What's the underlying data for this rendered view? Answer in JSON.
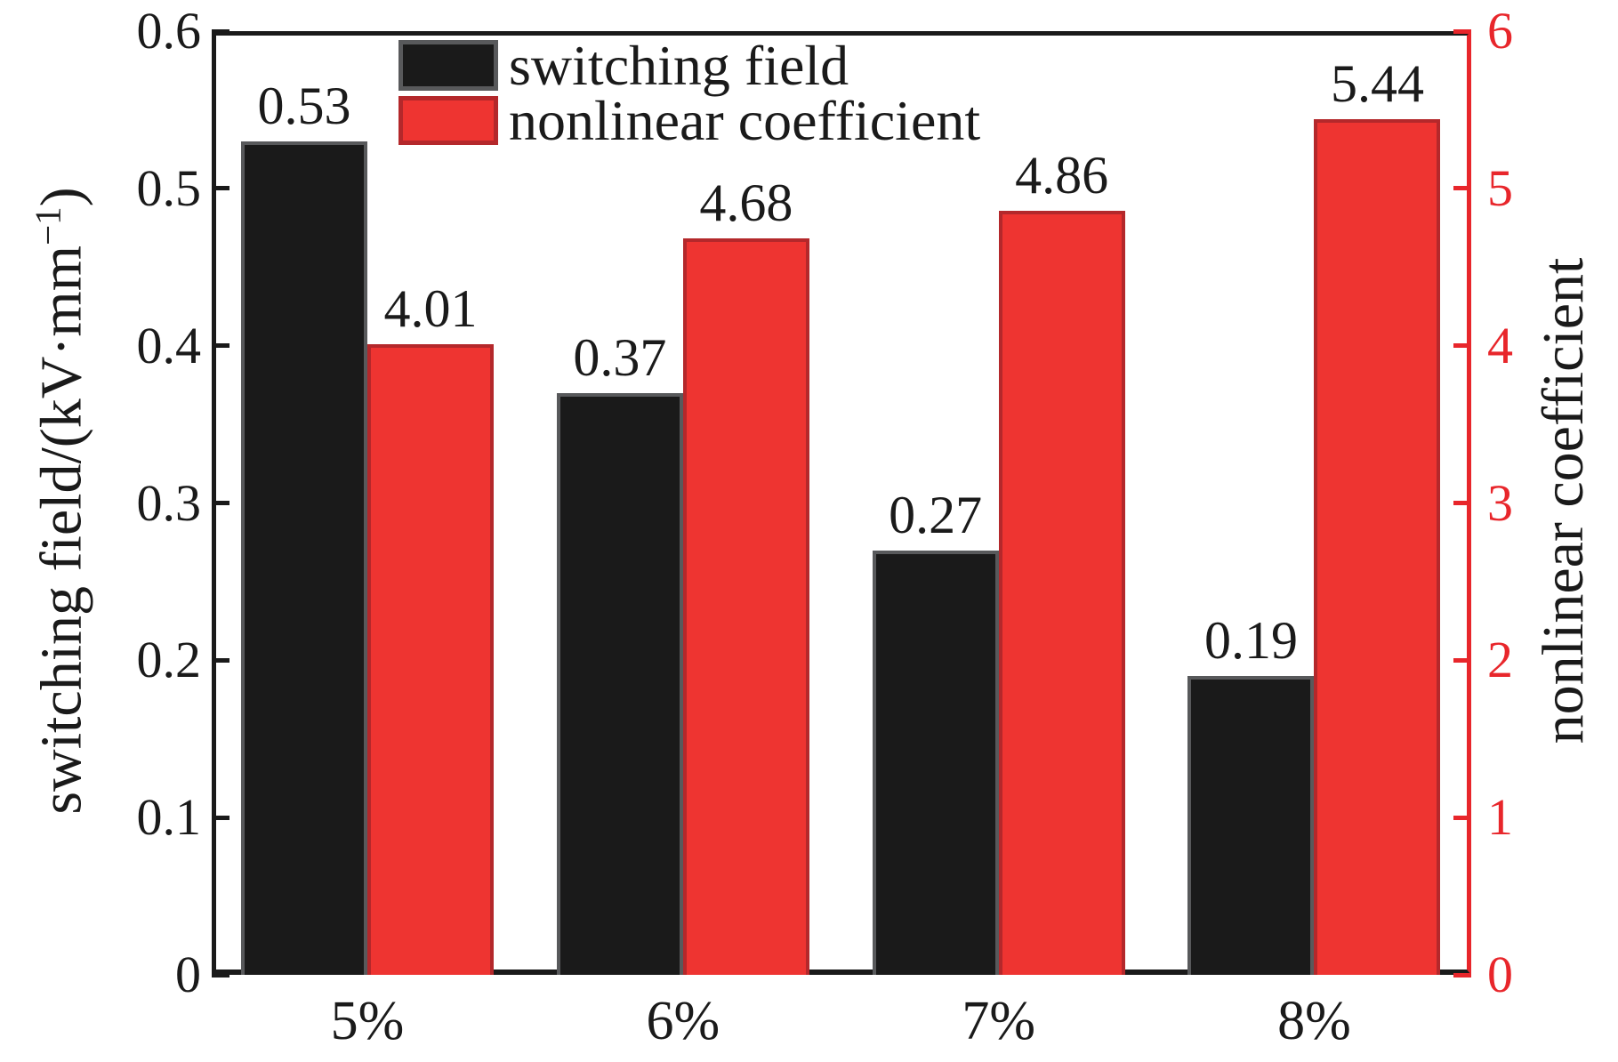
{
  "chart_data": {
    "type": "bar",
    "categories": [
      "5%",
      "6%",
      "7%",
      "8%"
    ],
    "series": [
      {
        "name": "switching field",
        "axis": "left",
        "values": [
          0.53,
          0.37,
          0.27,
          0.19
        ],
        "value_labels": [
          "0.53",
          "0.37",
          "0.27",
          "0.19"
        ],
        "fill": "#1a1a1a",
        "border": "#58595b"
      },
      {
        "name": "nonlinear coefficient",
        "axis": "right",
        "values": [
          4.01,
          4.68,
          4.86,
          5.44
        ],
        "value_labels": [
          "4.01",
          "4.68",
          "4.86",
          "5.44"
        ],
        "fill": "#ee3431",
        "border": "#b4282b"
      }
    ],
    "left_axis": {
      "title_pre": "switching field/(kV·mm",
      "title_sup": "−1",
      "title_post": ")",
      "min": 0,
      "max": 0.6,
      "tick_values": [
        0,
        0.1,
        0.2,
        0.3,
        0.4,
        0.5,
        0.6
      ],
      "tick_labels": [
        "0",
        "0.1",
        "0.2",
        "0.3",
        "0.4",
        "0.5",
        "0.6"
      ],
      "color": "#1a1a1a"
    },
    "right_axis": {
      "title": "nonlinear coefficient",
      "min": 0,
      "max": 6,
      "tick_values": [
        0,
        1,
        2,
        3,
        4,
        5,
        6
      ],
      "tick_labels": [
        "0",
        "1",
        "2",
        "3",
        "4",
        "5",
        "6"
      ],
      "color": "#e8262b"
    },
    "legend": {
      "position": "top-left-inside",
      "items": [
        {
          "label": "switching field",
          "fill": "#1a1a1a",
          "border": "#58595b"
        },
        {
          "label": "nonlinear coefficient",
          "fill": "#ee3431",
          "border": "#b4282b"
        }
      ]
    },
    "grid": false
  }
}
